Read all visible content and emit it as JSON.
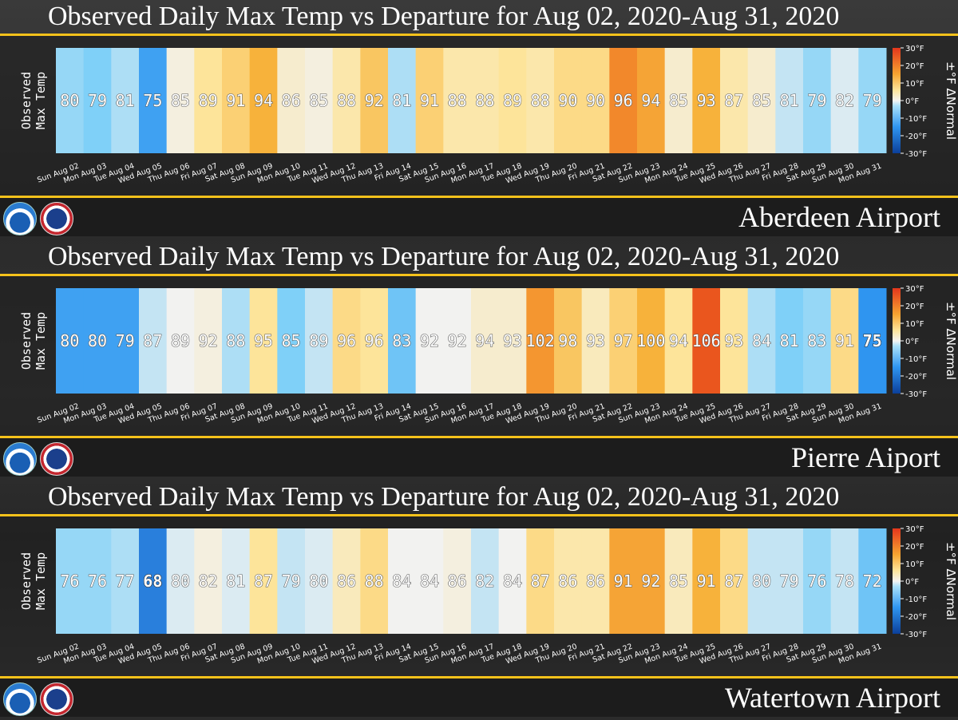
{
  "colors": {
    "scale_stops": [
      "#1f5fbf",
      "#2f95f0",
      "#7fd0f8",
      "#f2f2f0",
      "#fde49a",
      "#f7b23b",
      "#ef6c20",
      "#e3361c"
    ],
    "accent_rule": "#f5c21b"
  },
  "legend": {
    "ticks": [
      "30°F",
      "20°F",
      "10°F",
      "0°F",
      "-10°F",
      "-20°F",
      "-30°F"
    ],
    "axis_label": "±°F ΔNormal"
  },
  "y_label_line1": "Observed",
  "y_label_line2": "Max Temp",
  "chart_data": [
    {
      "type": "heatmap",
      "title": "Observed Daily Max Temp vs Departure for Aug 02, 2020-Aug 31, 2020",
      "station": "Aberdeen Airport",
      "categories": [
        "Sun Aug 02",
        "Mon Aug 03",
        "Tue Aug 04",
        "Wed Aug 05",
        "Thu Aug 06",
        "Fri Aug 07",
        "Sat Aug 08",
        "Sun Aug 09",
        "Mon Aug 10",
        "Tue Aug 11",
        "Wed Aug 12",
        "Thu Aug 13",
        "Fri Aug 14",
        "Sat Aug 15",
        "Sun Aug 16",
        "Mon Aug 17",
        "Tue Aug 18",
        "Wed Aug 19",
        "Thu Aug 20",
        "Fri Aug 21",
        "Sat Aug 22",
        "Sun Aug 23",
        "Mon Aug 24",
        "Tue Aug 25",
        "Wed Aug 26",
        "Thu Aug 27",
        "Fri Aug 28",
        "Sat Aug 29",
        "Sun Aug 30",
        "Mon Aug 31"
      ],
      "values": [
        80,
        79,
        81,
        75,
        85,
        89,
        91,
        94,
        86,
        85,
        88,
        92,
        81,
        91,
        88,
        88,
        89,
        88,
        90,
        90,
        96,
        94,
        85,
        93,
        87,
        85,
        81,
        79,
        82,
        79
      ],
      "departures": [
        -4,
        -5,
        -3,
        -9,
        1,
        5,
        7,
        10,
        2,
        1,
        4,
        8,
        -3,
        7,
        4,
        4,
        5,
        4,
        6,
        6,
        13,
        11,
        2,
        10,
        4,
        2,
        -2,
        -4,
        -1,
        -4
      ],
      "legend_range": [
        -30,
        30
      ]
    },
    {
      "type": "heatmap",
      "title": "Observed Daily Max Temp vs Departure for Aug 02, 2020-Aug 31, 2020",
      "station": "Pierre Aiport",
      "categories": [
        "Sun Aug 02",
        "Mon Aug 03",
        "Tue Aug 04",
        "Wed Aug 05",
        "Thu Aug 06",
        "Fri Aug 07",
        "Sat Aug 08",
        "Sun Aug 09",
        "Mon Aug 10",
        "Tue Aug 11",
        "Wed Aug 12",
        "Thu Aug 13",
        "Fri Aug 14",
        "Sat Aug 15",
        "Sun Aug 16",
        "Mon Aug 17",
        "Tue Aug 18",
        "Wed Aug 19",
        "Thu Aug 20",
        "Fri Aug 21",
        "Sat Aug 22",
        "Sun Aug 23",
        "Mon Aug 24",
        "Tue Aug 25",
        "Wed Aug 26",
        "Thu Aug 27",
        "Fri Aug 28",
        "Sat Aug 29",
        "Sun Aug 30",
        "Mon Aug 31"
      ],
      "values": [
        80,
        80,
        79,
        87,
        89,
        92,
        88,
        95,
        85,
        89,
        96,
        96,
        83,
        92,
        92,
        94,
        93,
        102,
        98,
        93,
        97,
        100,
        94,
        106,
        93,
        84,
        81,
        83,
        91,
        75
      ],
      "departures": [
        -9,
        -9,
        -9,
        -2,
        0,
        1,
        -3,
        5,
        -5,
        -2,
        6,
        5,
        -6,
        0,
        0,
        2,
        2,
        12,
        8,
        3,
        7,
        10,
        5,
        17,
        5,
        -3,
        -5,
        -4,
        6,
        -10
      ],
      "legend_range": [
        -30,
        30
      ]
    },
    {
      "type": "heatmap",
      "title": "Observed Daily Max Temp vs Departure for Aug 02, 2020-Aug 31, 2020",
      "station": "Watertown Airport",
      "categories": [
        "Sun Aug 02",
        "Mon Aug 03",
        "Tue Aug 04",
        "Wed Aug 05",
        "Thu Aug 06",
        "Fri Aug 07",
        "Sat Aug 08",
        "Sun Aug 09",
        "Mon Aug 10",
        "Tue Aug 11",
        "Wed Aug 12",
        "Thu Aug 13",
        "Fri Aug 14",
        "Sat Aug 15",
        "Sun Aug 16",
        "Mon Aug 17",
        "Tue Aug 18",
        "Wed Aug 19",
        "Thu Aug 20",
        "Fri Aug 21",
        "Sat Aug 22",
        "Sun Aug 23",
        "Mon Aug 24",
        "Tue Aug 25",
        "Wed Aug 26",
        "Thu Aug 27",
        "Fri Aug 28",
        "Sat Aug 29",
        "Sun Aug 30",
        "Mon Aug 31"
      ],
      "values": [
        76,
        76,
        77,
        68,
        80,
        82,
        81,
        87,
        79,
        80,
        86,
        88,
        84,
        84,
        86,
        82,
        84,
        87,
        86,
        86,
        91,
        92,
        85,
        91,
        87,
        80,
        79,
        76,
        78,
        72
      ],
      "departures": [
        -4,
        -4,
        -3,
        -12,
        -1,
        1,
        -1,
        5,
        -2,
        -1,
        3,
        6,
        0,
        0,
        1,
        -2,
        0,
        6,
        4,
        4,
        11,
        11,
        3,
        10,
        6,
        -2,
        -2,
        -4,
        -2,
        -6
      ],
      "legend_range": [
        -30,
        30
      ]
    }
  ]
}
